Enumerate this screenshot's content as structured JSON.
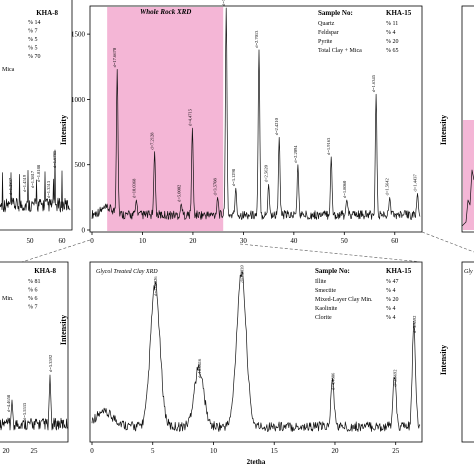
{
  "chart_data": [
    {
      "type": "line",
      "panel": "whole-rock-xrd",
      "title": "Whole Rock XRD",
      "xlabel": "",
      "ylabel": "Intensity",
      "xlim": [
        0,
        65
      ],
      "ylim": [
        0,
        1700
      ],
      "x_ticks": [
        "0",
        "10",
        "20",
        "30",
        "40",
        "50",
        "60"
      ],
      "y_ticks": [
        "0",
        "500",
        "1000",
        "1500"
      ],
      "shaded_range": [
        3,
        26
      ],
      "shade_color": "#f4b6d6",
      "sample_header": {
        "label": "Sample No:",
        "id": "KHA-15"
      },
      "composition": [
        {
          "mineral": "Quartz",
          "value": "% 11"
        },
        {
          "mineral": "Feldspar",
          "value": "% 4"
        },
        {
          "mineral": "Pyrite",
          "value": "% 20"
        },
        {
          "mineral": "Total Clay + Mica",
          "value": "% 65"
        }
      ],
      "peaks": [
        {
          "x": 5,
          "y": 1230,
          "label": "d=17.6670"
        },
        {
          "x": 8.8,
          "y": 230,
          "label": "d=10.0368"
        },
        {
          "x": 12.4,
          "y": 600,
          "label": "d=7.2128"
        },
        {
          "x": 17.7,
          "y": 200,
          "label": "d=5.0002"
        },
        {
          "x": 19.9,
          "y": 780,
          "label": "d=4.4715"
        },
        {
          "x": 24.9,
          "y": 250,
          "label": "d=3.5708"
        },
        {
          "x": 26.6,
          "y": 1700,
          "label": "d=3.3453"
        },
        {
          "x": 28.5,
          "y": 320,
          "label": "d=3.1298"
        },
        {
          "x": 33.1,
          "y": 1380,
          "label": "d=2.7013"
        },
        {
          "x": 35.0,
          "y": 350,
          "label": "d=2.5620"
        },
        {
          "x": 37.1,
          "y": 710,
          "label": "d=2.4210"
        },
        {
          "x": 40.8,
          "y": 500,
          "label": "d=2.2094"
        },
        {
          "x": 47.4,
          "y": 560,
          "label": "d=1.9163"
        },
        {
          "x": 50.5,
          "y": 230,
          "label": "d=1.8060"
        },
        {
          "x": 56.3,
          "y": 1040,
          "label": "d=1.6345"
        },
        {
          "x": 59.0,
          "y": 250,
          "label": "d=1.5642"
        },
        {
          "x": 64.5,
          "y": 280,
          "label": "d=1.4437"
        }
      ]
    },
    {
      "type": "line",
      "panel": "glycol-treated-clay-xrd",
      "title": "Glycol Treated Clay XRD",
      "xlabel": "2tetha",
      "ylabel": "Intensity",
      "xlim": [
        0,
        27
      ],
      "x_ticks": [
        "0",
        "5",
        "10",
        "15",
        "20",
        "25"
      ],
      "sample_header": {
        "label": "Sample No:",
        "id": "KHA-15"
      },
      "composition": [
        {
          "mineral": "Illite",
          "value": "% 47"
        },
        {
          "mineral": "Smectite",
          "value": "% 4"
        },
        {
          "mineral": "Mixed-Layer Clay Min.",
          "value": "% 20"
        },
        {
          "mineral": "Kaolinite",
          "value": "% 4"
        },
        {
          "mineral": "Clorite",
          "value": "% 4"
        }
      ],
      "peaks": [
        {
          "x": 5.2,
          "label": "d=17.0026"
        },
        {
          "x": 8.8,
          "label": "d=10.0416"
        },
        {
          "x": 12.3,
          "label": "d=7.2039"
        },
        {
          "x": 19.8,
          "label": "d=4.4886"
        },
        {
          "x": 24.9,
          "label": "d=3.5692"
        },
        {
          "x": 26.5,
          "label": "d=3.3592"
        }
      ]
    },
    {
      "type": "line",
      "panel": "left-top-partial",
      "x_ticks": [
        "50",
        "60"
      ],
      "sample_header": {
        "id": "KHA-8"
      },
      "composition_values": [
        "% 14",
        "% 7",
        "% 5",
        "% 5",
        "% 70"
      ],
      "composition_labels": [
        "Mica"
      ],
      "peak_labels": [
        "d=1.6785",
        "d=1.8188",
        "d=1.2837",
        "d=1.4519",
        "d=1.3817",
        "d=1.3513"
      ]
    },
    {
      "type": "line",
      "panel": "left-bottom-partial",
      "x_ticks": [
        "20",
        "25"
      ],
      "sample_header": {
        "id": "KHA-8"
      },
      "composition_values": [
        "% 81",
        "% 6",
        "% 6",
        "% 7"
      ],
      "composition_labels": [
        "Min."
      ],
      "peak_labels": [
        "d=4.4658",
        "d=3.5533",
        "d=3.3592"
      ]
    },
    {
      "type": "line",
      "panel": "right-partial",
      "ylabel": "Intensity",
      "title_fragment": "Gly"
    }
  ]
}
